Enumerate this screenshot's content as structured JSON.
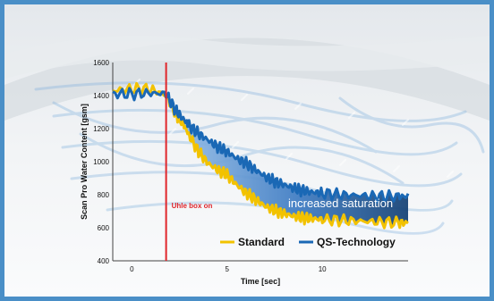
{
  "colors": {
    "frame": "#4a8fc7",
    "standard": "#f2c200",
    "qs_technology": "#1a68b5",
    "marker": "#e0262b",
    "fill_light": "#9bc2ea",
    "fill_dark": "#123f73"
  },
  "chart_data": {
    "type": "line",
    "title": "",
    "xlabel": "Time [sec]",
    "ylabel": "Scan Pro Water Content [gsm]",
    "xlim": [
      -1,
      14.5
    ],
    "ylim": [
      400,
      1600
    ],
    "x_ticks": [
      "0",
      "5",
      "10"
    ],
    "y_ticks": [
      "400",
      "600",
      "800",
      "1000",
      "1200",
      "1400",
      "1600"
    ],
    "grid": false,
    "legend_position": "bottom-right",
    "marker": {
      "x": 1.8,
      "label": "Uhle box on"
    },
    "annotation": "increased saturation",
    "series": [
      {
        "name": "Standard",
        "x": [
          -1,
          0,
          1,
          1.8,
          2.3,
          2.7,
          3,
          3.5,
          4,
          4.5,
          5,
          5.5,
          6,
          6.5,
          7,
          7.5,
          8,
          8.5,
          9,
          9.5,
          10,
          11,
          12,
          13,
          14,
          14.5
        ],
        "y": [
          1430,
          1440,
          1440,
          1400,
          1290,
          1230,
          1160,
          1060,
          990,
          950,
          920,
          860,
          810,
          770,
          730,
          705,
          685,
          670,
          660,
          655,
          650,
          645,
          640,
          635,
          630,
          630
        ]
      },
      {
        "name": "QS-Technology",
        "x": [
          -1,
          0,
          1,
          1.8,
          2.3,
          2.7,
          3,
          3.5,
          4,
          4.5,
          5,
          5.5,
          6,
          6.5,
          7,
          7.5,
          8,
          8.5,
          9,
          9.5,
          10,
          11,
          12,
          13,
          14,
          14.5
        ],
        "y": [
          1410,
          1410,
          1415,
          1410,
          1310,
          1260,
          1220,
          1170,
          1130,
          1090,
          1060,
          1020,
          990,
          950,
          910,
          880,
          860,
          840,
          825,
          815,
          810,
          800,
          795,
          790,
          790,
          790
        ]
      }
    ]
  }
}
